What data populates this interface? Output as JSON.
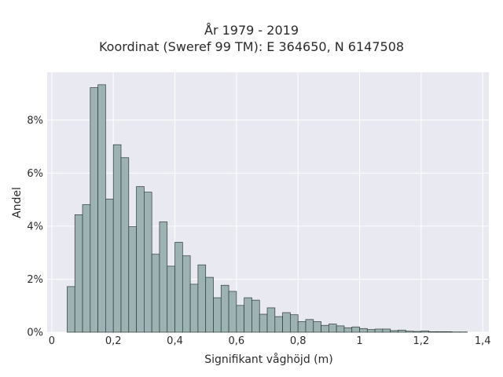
{
  "chart_data": {
    "type": "bar",
    "title_line1": "År 1979 - 2019",
    "title_line2": "Koordinat (Sweref 99 TM): E 364650, N 6147508",
    "xlabel": "Signifikant våghöjd (m)",
    "ylabel": "Andel",
    "xlim": [
      -0.015,
      1.42
    ],
    "ylim": [
      0,
      0.098
    ],
    "grid": true,
    "bin_width": 0.025,
    "bins_start": [
      0.05,
      0.075,
      0.1,
      0.125,
      0.15,
      0.175,
      0.2,
      0.225,
      0.25,
      0.275,
      0.3,
      0.325,
      0.35,
      0.375,
      0.4,
      0.425,
      0.45,
      0.475,
      0.5,
      0.525,
      0.55,
      0.575,
      0.6,
      0.625,
      0.65,
      0.675,
      0.7,
      0.725,
      0.75,
      0.775,
      0.8,
      0.825,
      0.85,
      0.875,
      0.9,
      0.925,
      0.95,
      0.975,
      1.0,
      1.025,
      1.05,
      1.075,
      1.1,
      1.125,
      1.15,
      1.175,
      1.2,
      1.225,
      1.25,
      1.275,
      1.3,
      1.325
    ],
    "values": [
      0.0172,
      0.0443,
      0.0481,
      0.0922,
      0.0933,
      0.0502,
      0.0707,
      0.0658,
      0.0398,
      0.0549,
      0.0528,
      0.0294,
      0.0416,
      0.0249,
      0.0339,
      0.0288,
      0.0181,
      0.0254,
      0.0207,
      0.013,
      0.0177,
      0.0154,
      0.0101,
      0.013,
      0.0121,
      0.0068,
      0.0092,
      0.0059,
      0.0074,
      0.0066,
      0.004,
      0.0048,
      0.004,
      0.0026,
      0.0031,
      0.0024,
      0.0017,
      0.002,
      0.0014,
      0.001,
      0.0012,
      0.0012,
      0.0006,
      0.0008,
      0.0004,
      0.0003,
      0.0005,
      0.0002,
      0.0002,
      0.0002,
      0.0001,
      0.0001
    ],
    "x_ticks": [
      {
        "value": 0,
        "label": "0"
      },
      {
        "value": 0.2,
        "label": "0,2"
      },
      {
        "value": 0.4,
        "label": "0,4"
      },
      {
        "value": 0.6,
        "label": "0,6"
      },
      {
        "value": 0.8,
        "label": "0,8"
      },
      {
        "value": 1.0,
        "label": "1"
      },
      {
        "value": 1.2,
        "label": "1,2"
      },
      {
        "value": 1.4,
        "label": "1,4"
      }
    ],
    "y_ticks": [
      {
        "value": 0,
        "label": "0%"
      },
      {
        "value": 0.02,
        "label": "2%"
      },
      {
        "value": 0.04,
        "label": "4%"
      },
      {
        "value": 0.06,
        "label": "6%"
      },
      {
        "value": 0.08,
        "label": "8%"
      }
    ],
    "colors": {
      "bar_fill": "#9db3b3",
      "bar_stroke": "#2e3a3a",
      "plot_bg": "#e9e9f1",
      "grid": "#ffffff"
    }
  }
}
